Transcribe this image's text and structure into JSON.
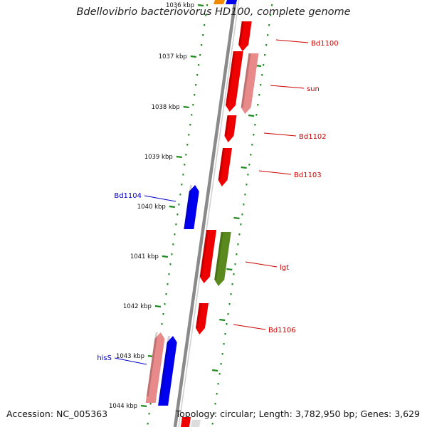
{
  "title": "Bdellovibrio bacteriovorus HD100, complete genome",
  "footer": {
    "accession": "Accession: NC_005363",
    "summary": "Topology: circular; Length: 3,782,950 bp; Genes: 3,629"
  },
  "ruler": {
    "unit": "kbp",
    "ticks": [
      {
        "label": "1036 kbp",
        "faded": true
      },
      {
        "label": "1037 kbp"
      },
      {
        "label": "1038 kbp"
      },
      {
        "label": "1039 kbp"
      },
      {
        "label": "1040 kbp"
      },
      {
        "label": "1041 kbp"
      },
      {
        "label": "1042 kbp"
      },
      {
        "label": "1043 kbp"
      },
      {
        "label": "1044 kbp"
      }
    ]
  },
  "colors": {
    "backbone": "#8a8a8a",
    "ruler_green": "#1e8a1e",
    "gene_red": "#ee0000",
    "gene_pink": "#e88a8a",
    "gene_blue": "#0000ee",
    "gene_olive": "#5a8a1e",
    "gene_orange": "#f08a00",
    "label_red": "#cc0000",
    "label_blue": "#0000cc"
  },
  "genes": [
    {
      "name": "Bd1100",
      "strand": "+",
      "color": "red",
      "labeled": true
    },
    {
      "name": "sun",
      "strand": "+",
      "color": "pink",
      "labeled": true
    },
    {
      "name": "",
      "strand": "+",
      "color": "red",
      "labeled": false
    },
    {
      "name": "Bd1102",
      "strand": "+",
      "color": "red",
      "labeled": true
    },
    {
      "name": "Bd1103",
      "strand": "+",
      "color": "red",
      "labeled": true
    },
    {
      "name": "Bd1104",
      "strand": "-",
      "color": "blue",
      "labeled": true
    },
    {
      "name": "",
      "strand": "+",
      "color": "red",
      "labeled": false
    },
    {
      "name": "lgt",
      "strand": "+",
      "color": "olive",
      "labeled": true
    },
    {
      "name": "Bd1106",
      "strand": "+",
      "color": "red",
      "labeled": true
    },
    {
      "name": "hisS",
      "strand": "-",
      "color": "blue",
      "labeled": true
    },
    {
      "name": "",
      "strand": "-",
      "color": "pink",
      "labeled": false
    }
  ]
}
